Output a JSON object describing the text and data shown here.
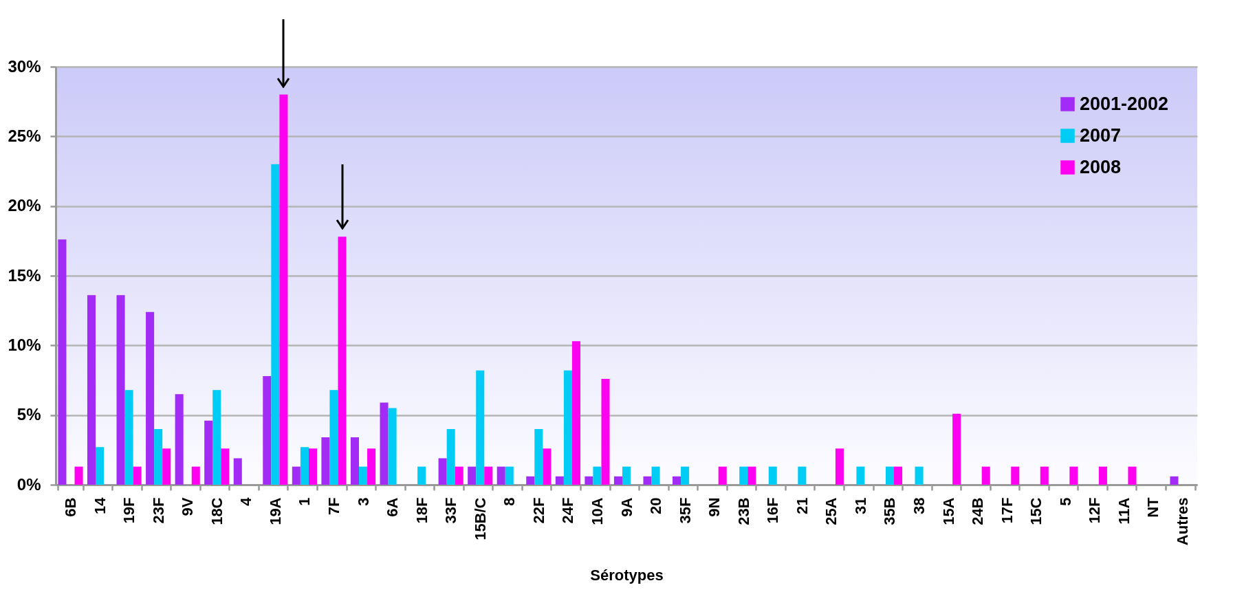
{
  "chart_data": {
    "type": "bar",
    "xlabel": "Sérotypes",
    "categories": [
      "6B",
      "14",
      "19F",
      "23F",
      "9V",
      "18C",
      "4",
      "19A",
      "1",
      "7F",
      "3",
      "6A",
      "18F",
      "33F",
      "15B/C",
      "8",
      "22F",
      "24F",
      "10A",
      "9A",
      "20",
      "35F",
      "9N",
      "23B",
      "16F",
      "21",
      "25A",
      "31",
      "35B",
      "38",
      "15A",
      "24B",
      "17F",
      "15C",
      "5",
      "12F",
      "11A",
      "NT",
      "Autres"
    ],
    "series": [
      {
        "name": "2001-2002",
        "color": "#a22cf5",
        "values": [
          17.6,
          13.6,
          13.6,
          12.4,
          6.5,
          4.6,
          1.9,
          7.8,
          1.3,
          3.4,
          3.4,
          5.9,
          0,
          1.9,
          1.3,
          1.3,
          0.6,
          0.6,
          0.6,
          0.6,
          0.6,
          0.6,
          0,
          0,
          0,
          0,
          0,
          0,
          0,
          0,
          0,
          0,
          0,
          0,
          0,
          0,
          0,
          0,
          0.6
        ]
      },
      {
        "name": "2007",
        "color": "#00ccf5",
        "values": [
          0,
          2.7,
          6.8,
          4.0,
          0,
          6.8,
          0,
          23.0,
          2.7,
          6.8,
          1.3,
          5.5,
          1.3,
          4.0,
          8.2,
          1.3,
          4.0,
          8.2,
          1.3,
          1.3,
          1.3,
          1.3,
          0,
          1.3,
          1.3,
          1.3,
          0,
          1.3,
          1.3,
          1.3,
          0,
          0,
          0,
          0,
          0,
          0,
          0,
          0,
          0
        ]
      },
      {
        "name": "2008",
        "color": "#ff00f0",
        "values": [
          1.3,
          0,
          1.3,
          2.6,
          1.3,
          2.6,
          0,
          28.0,
          2.6,
          17.8,
          2.6,
          0,
          0,
          1.3,
          1.3,
          0,
          2.6,
          10.3,
          7.6,
          0,
          0,
          0,
          1.3,
          1.3,
          0,
          0,
          2.6,
          0,
          1.3,
          0,
          5.1,
          1.3,
          1.3,
          1.3,
          1.3,
          1.3,
          1.3,
          0,
          0
        ]
      }
    ],
    "ylim": [
      0,
      30
    ],
    "yticks": [
      {
        "value": 0,
        "label": "0%"
      },
      {
        "value": 5,
        "label": "5%"
      },
      {
        "value": 10,
        "label": "10%"
      },
      {
        "value": 15,
        "label": "15%"
      },
      {
        "value": 20,
        "label": "20%"
      },
      {
        "value": 25,
        "label": "25%"
      },
      {
        "value": 30,
        "label": "30%"
      }
    ],
    "grid": "y",
    "legend": "top right"
  }
}
